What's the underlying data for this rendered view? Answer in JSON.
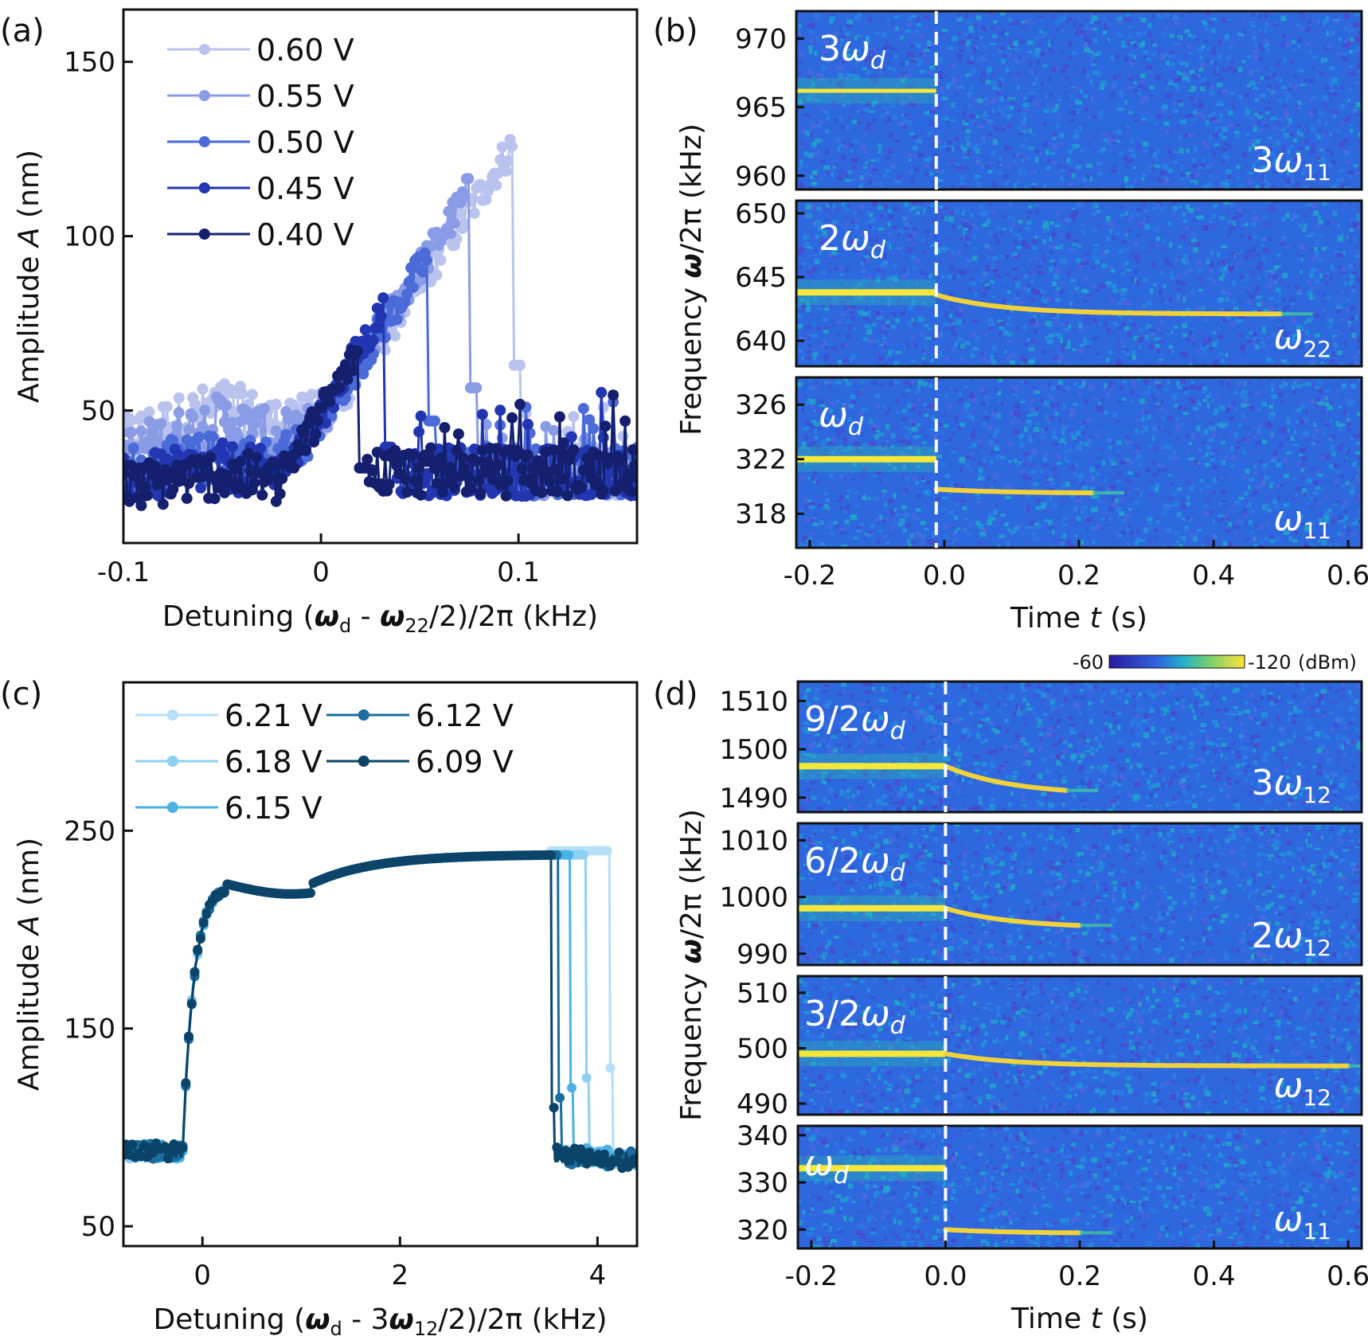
{
  "chart_data": [
    {
      "id": "a",
      "type": "scatter",
      "panel_label": "(a)",
      "xlabel": {
        "pre": "Detuning (",
        "w1": "ω",
        "s1": "d",
        "mid": " - ",
        "w2": "ω",
        "s2": "22",
        "post": "/2)/2π (kHz)"
      },
      "ylabel": {
        "pre": "Amplitude ",
        "var": "A",
        "post": " (nm)"
      },
      "xlim": [
        -0.1,
        0.16
      ],
      "ylim": [
        12,
        165
      ],
      "xticks": [
        {
          "v": -0.1,
          "label": "-0.1"
        },
        {
          "v": 0,
          "label": "0"
        },
        {
          "v": 0.1,
          "label": "0.1"
        }
      ],
      "yticks": [
        {
          "v": 50,
          "label": "50"
        },
        {
          "v": 100,
          "label": "100"
        },
        {
          "v": 150,
          "label": "150"
        }
      ],
      "series": [
        {
          "name": "0.60 V",
          "color": "#b9c3ee",
          "jump_x": 0.097,
          "peak": 126,
          "floor": 42
        },
        {
          "name": "0.55 V",
          "color": "#8b9ce6",
          "jump_x": 0.075,
          "peak": 113,
          "floor": 38
        },
        {
          "name": "0.50 V",
          "color": "#4a6bd8",
          "jump_x": 0.054,
          "peak": 94,
          "floor": 33
        },
        {
          "name": "0.45 V",
          "color": "#2136b0",
          "jump_x": 0.032,
          "peak": 79,
          "floor": 30
        },
        {
          "name": "0.40 V",
          "color": "#14206e",
          "jump_x": 0.019,
          "peak": 67,
          "floor": 28
        }
      ]
    },
    {
      "id": "b",
      "type": "heatmap",
      "panel_label": "(b)",
      "xlabel": {
        "pre": "Time ",
        "var": "t",
        "post": " (s)"
      },
      "ylabel": {
        "pre": "Frequency ",
        "var": "ω",
        "post": "/2π (kHz)"
      },
      "xlim": [
        -0.22,
        0.62
      ],
      "xticks": [
        {
          "v": -0.2,
          "label": "-0.2"
        },
        {
          "v": 0,
          "label": "0.0"
        },
        {
          "v": 0.2,
          "label": "0.2"
        },
        {
          "v": 0.4,
          "label": "0.4"
        },
        {
          "v": 0.6,
          "label": "0.6"
        }
      ],
      "switch_time": -0.012,
      "strips": [
        {
          "ylim": [
            959,
            972
          ],
          "yticks": [
            {
              "v": 960,
              "label": "960"
            },
            {
              "v": 965,
              "label": "965"
            },
            {
              "v": 970,
              "label": "970"
            }
          ],
          "left_label": {
            "coef": "3",
            "sym": "ω",
            "sub": "d"
          },
          "right_label": {
            "coef": "3",
            "sym": "ω",
            "sub": "11"
          },
          "before": 966.2,
          "after": null,
          "decay_to": null,
          "decay_end": null
        },
        {
          "ylim": [
            638,
            651
          ],
          "yticks": [
            {
              "v": 640,
              "label": "640"
            },
            {
              "v": 645,
              "label": "645"
            },
            {
              "v": 650,
              "label": "650"
            }
          ],
          "left_label": {
            "coef": "2",
            "sym": "ω",
            "sub": "d"
          },
          "right_label": {
            "coef": "",
            "sym": "ω",
            "sub": "22"
          },
          "before": 643.8,
          "after": 643.6,
          "decay_to": 642.1,
          "decay_end": 0.5
        },
        {
          "ylim": [
            315.5,
            328
          ],
          "yticks": [
            {
              "v": 318,
              "label": "318"
            },
            {
              "v": 322,
              "label": "322"
            },
            {
              "v": 326,
              "label": "326"
            }
          ],
          "left_label": {
            "coef": "",
            "sym": "ω",
            "sub": "d"
          },
          "right_label": {
            "coef": "",
            "sym": "ω",
            "sub": "11"
          },
          "before": 322.0,
          "after": 319.8,
          "decay_to": 319.5,
          "decay_end": 0.22
        }
      ]
    },
    {
      "id": "c",
      "type": "scatter",
      "panel_label": "(c)",
      "xlabel": {
        "pre": "Detuning (",
        "w1": "ω",
        "s1": "d",
        "mid": " - 3",
        "w2": "ω",
        "s2": "12",
        "post": "/2)/2π (kHz)"
      },
      "ylabel": {
        "pre": "Amplitude ",
        "var": "A",
        "post": " (nm)"
      },
      "xlim": [
        -0.8,
        4.4
      ],
      "ylim": [
        40,
        325
      ],
      "xticks": [
        {
          "v": 0,
          "label": "0"
        },
        {
          "v": 2,
          "label": "2"
        },
        {
          "v": 4,
          "label": "4"
        }
      ],
      "yticks": [
        {
          "v": 50,
          "label": "50"
        },
        {
          "v": 150,
          "label": "150"
        },
        {
          "v": 250,
          "label": "250"
        }
      ],
      "series": [
        {
          "name": "6.21 V",
          "color": "#b5e0f7",
          "jump_x": 4.12
        },
        {
          "name": "6.18 V",
          "color": "#8dd0f2",
          "jump_x": 3.88
        },
        {
          "name": "6.15 V",
          "color": "#4cb2e6",
          "jump_x": 3.72
        },
        {
          "name": "6.12 V",
          "color": "#1a6d9e",
          "jump_x": 3.6
        },
        {
          "name": "6.09 V",
          "color": "#0b4468",
          "jump_x": 3.53
        }
      ]
    },
    {
      "id": "d",
      "type": "heatmap",
      "panel_label": "(d)",
      "xlabel": {
        "pre": "Time ",
        "var": "t",
        "post": " (s)"
      },
      "ylabel": {
        "pre": "Frequency ",
        "var": "ω",
        "post": "/2π (kHz)"
      },
      "xlim": [
        -0.22,
        0.62
      ],
      "xticks": [
        {
          "v": -0.2,
          "label": "-0.2"
        },
        {
          "v": 0,
          "label": "0.0"
        },
        {
          "v": 0.2,
          "label": "0.2"
        },
        {
          "v": 0.4,
          "label": "0.4"
        },
        {
          "v": 0.6,
          "label": "0.6"
        }
      ],
      "switch_time": 0.0,
      "colorbar": {
        "min_label": "-60",
        "max_label": "-120",
        "unit": "(dBm)"
      },
      "strips": [
        {
          "ylim": [
            1487,
            1514
          ],
          "yticks": [
            {
              "v": 1490,
              "label": "1490"
            },
            {
              "v": 1500,
              "label": "1500"
            },
            {
              "v": 1510,
              "label": "1510"
            }
          ],
          "left_label": {
            "coef": "9/2",
            "sym": "ω",
            "sub": "d"
          },
          "right_label": {
            "coef": "3",
            "sym": "ω",
            "sub": "12"
          },
          "before": 1496.5,
          "after": 1496.5,
          "decay_to": 1490.5,
          "decay_end": 0.18
        },
        {
          "ylim": [
            988,
            1013
          ],
          "yticks": [
            {
              "v": 990,
              "label": "990"
            },
            {
              "v": 1000,
              "label": "1000"
            },
            {
              "v": 1010,
              "label": "1010"
            }
          ],
          "left_label": {
            "coef": "6/2",
            "sym": "ω",
            "sub": "d"
          },
          "right_label": {
            "coef": "2",
            "sym": "ω",
            "sub": "12"
          },
          "before": 998.0,
          "after": 998.0,
          "decay_to": 994.5,
          "decay_end": 0.2
        },
        {
          "ylim": [
            488,
            513
          ],
          "yticks": [
            {
              "v": 490,
              "label": "490"
            },
            {
              "v": 500,
              "label": "500"
            },
            {
              "v": 510,
              "label": "510"
            }
          ],
          "left_label": {
            "coef": "3/2",
            "sym": "ω",
            "sub": "d"
          },
          "right_label": {
            "coef": "",
            "sym": "ω",
            "sub": "12"
          },
          "before": 499.0,
          "after": 499.0,
          "decay_to": 496.8,
          "decay_end": 0.6
        },
        {
          "ylim": [
            316,
            342
          ],
          "yticks": [
            {
              "v": 320,
              "label": "320"
            },
            {
              "v": 330,
              "label": "330"
            },
            {
              "v": 340,
              "label": "340"
            }
          ],
          "left_label": {
            "coef": "",
            "sym": "ω",
            "sub": "d"
          },
          "right_label": {
            "coef": "",
            "sym": "ω",
            "sub": "11"
          },
          "before": 333.0,
          "after": 320.0,
          "decay_to": 319.2,
          "decay_end": 0.2
        }
      ]
    }
  ]
}
